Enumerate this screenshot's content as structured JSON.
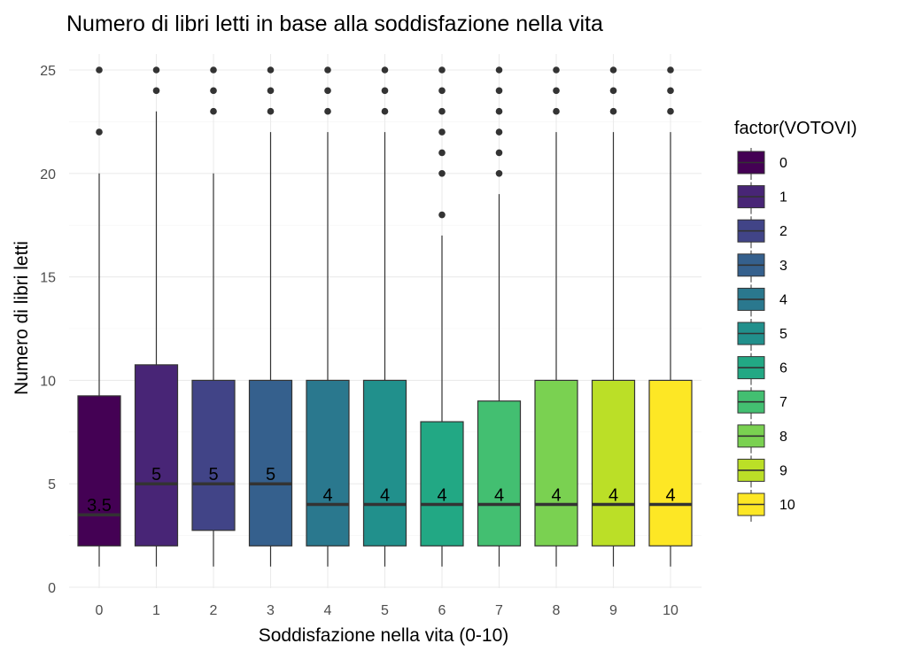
{
  "chart_data": {
    "type": "boxplot",
    "title": "Numero di libri letti in base alla soddisfazione nella vita",
    "xlabel": "Soddisfazione nella vita (0-10)",
    "ylabel": "Numero di libri letti",
    "ylim": [
      0,
      25
    ],
    "y_ticks": [
      "0",
      "5",
      "10",
      "15",
      "20",
      "25"
    ],
    "grid": true,
    "legend": {
      "title": "factor(VOTOVI)",
      "position": "right"
    },
    "categories": [
      "0",
      "1",
      "2",
      "3",
      "4",
      "5",
      "6",
      "7",
      "8",
      "9",
      "10"
    ],
    "colors": [
      "#440154",
      "#482576",
      "#414487",
      "#35608D",
      "#2A788E",
      "#21908C",
      "#22A884",
      "#43BF71",
      "#7AD151",
      "#BBDF27",
      "#FDE725"
    ],
    "boxes": [
      {
        "category": "0",
        "whisker_low": 1,
        "q1": 2,
        "median": 3.5,
        "q3": 9.25,
        "whisker_high": 20,
        "outliers": [
          22,
          25
        ],
        "median_label": "3.5"
      },
      {
        "category": "1",
        "whisker_low": 1,
        "q1": 2,
        "median": 5,
        "q3": 10.75,
        "whisker_high": 23,
        "outliers": [
          24,
          25
        ],
        "median_label": "5"
      },
      {
        "category": "2",
        "whisker_low": 1,
        "q1": 2.75,
        "median": 5,
        "q3": 10,
        "whisker_high": 20,
        "outliers": [
          23,
          24,
          25
        ],
        "median_label": "5"
      },
      {
        "category": "3",
        "whisker_low": 1,
        "q1": 2,
        "median": 5,
        "q3": 10,
        "whisker_high": 22,
        "outliers": [
          23,
          24,
          25
        ],
        "median_label": "5"
      },
      {
        "category": "4",
        "whisker_low": 1,
        "q1": 2,
        "median": 4,
        "q3": 10,
        "whisker_high": 22,
        "outliers": [
          23,
          24,
          25
        ],
        "median_label": "4"
      },
      {
        "category": "5",
        "whisker_low": 1,
        "q1": 2,
        "median": 4,
        "q3": 10,
        "whisker_high": 22,
        "outliers": [
          23,
          24,
          25
        ],
        "median_label": "4"
      },
      {
        "category": "6",
        "whisker_low": 1,
        "q1": 2,
        "median": 4,
        "q3": 8,
        "whisker_high": 17,
        "outliers": [
          18,
          20,
          21,
          22,
          23,
          24,
          25
        ],
        "median_label": "4"
      },
      {
        "category": "7",
        "whisker_low": 1,
        "q1": 2,
        "median": 4,
        "q3": 9,
        "whisker_high": 19,
        "outliers": [
          20,
          21,
          22,
          23,
          24,
          25
        ],
        "median_label": "4"
      },
      {
        "category": "8",
        "whisker_low": 1,
        "q1": 2,
        "median": 4,
        "q3": 10,
        "whisker_high": 22,
        "outliers": [
          23,
          24,
          25
        ],
        "median_label": "4"
      },
      {
        "category": "9",
        "whisker_low": 1,
        "q1": 2,
        "median": 4,
        "q3": 10,
        "whisker_high": 22,
        "outliers": [
          23,
          24,
          25
        ],
        "median_label": "4"
      },
      {
        "category": "10",
        "whisker_low": 1,
        "q1": 2,
        "median": 4,
        "q3": 10,
        "whisker_high": 22,
        "outliers": [
          23,
          24,
          25
        ],
        "median_label": "4"
      }
    ]
  }
}
